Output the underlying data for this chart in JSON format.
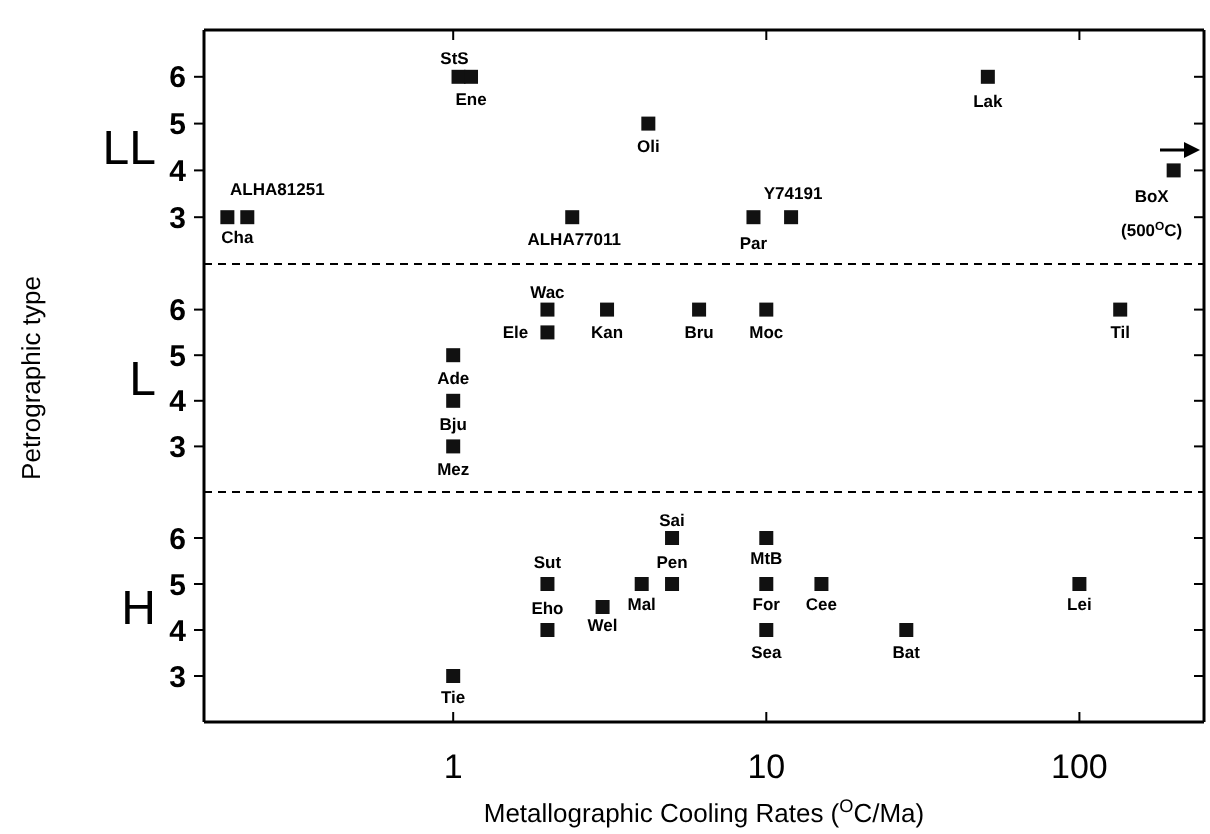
{
  "chart_data": [
    {
      "type": "scatter",
      "title": "LL",
      "log": "x",
      "xlim": [
        0.16,
        250
      ],
      "xticks": [
        1,
        10,
        100
      ],
      "ylim": [
        2,
        7
      ],
      "yticks": [
        3,
        4,
        5,
        6
      ],
      "tick_labels": "y",
      "marker": "square",
      "grid": false,
      "series": [
        {
          "color": "#111111",
          "x": [
            0.19,
            0.22,
            1.04,
            1.14,
            2.4,
            4.2,
            9.1,
            12,
            51,
            200
          ],
          "values": [
            3,
            3,
            6,
            6,
            3,
            5,
            3,
            3,
            6,
            4
          ]
        }
      ],
      "annotations": [
        {
          "text": "ALHA81251",
          "x": 0.19,
          "y": 3
        },
        {
          "text": "Cha",
          "x": 0.22,
          "y": 3
        },
        {
          "text": "StS",
          "x": 1.04,
          "y": 6
        },
        {
          "text": "Ene",
          "x": 1.14,
          "y": 6
        },
        {
          "text": "ALHA77011",
          "x": 2.4,
          "y": 3
        },
        {
          "text": "Oli",
          "x": 4.2,
          "y": 5
        },
        {
          "text": "Par",
          "x": 9.1,
          "y": 3
        },
        {
          "text": "Y74191",
          "x": 12,
          "y": 3
        },
        {
          "text": "Lak",
          "x": 51,
          "y": 6
        },
        {
          "text": "BoX (500$^{O}$C)",
          "x": 200,
          "y": 4
        }
      ]
    },
    {
      "type": "scatter",
      "title": "L",
      "ylabel": "Petrographic type",
      "log": "x",
      "xlim": [
        0.16,
        250
      ],
      "xticks": [
        1,
        10,
        100
      ],
      "ylim": [
        2,
        7
      ],
      "yticks": [
        3,
        4,
        5,
        6
      ],
      "tick_labels": "y",
      "marker": "square",
      "grid": false,
      "series": [
        {
          "color": "#111111",
          "x": [
            1,
            1,
            1,
            2,
            2,
            3.1,
            6.1,
            10,
            135
          ],
          "values": [
            5,
            4,
            3,
            6,
            5.5,
            6,
            6,
            6,
            6
          ]
        }
      ],
      "annotations": [
        {
          "text": "Ade",
          "x": 1,
          "y": 5
        },
        {
          "text": "Bju",
          "x": 1,
          "y": 4
        },
        {
          "text": "Mez",
          "x": 1,
          "y": 3
        },
        {
          "text": "Wac",
          "x": 2,
          "y": 6
        },
        {
          "text": "Ele",
          "x": 2,
          "y": 5.5
        },
        {
          "text": "Kan",
          "x": 3.1,
          "y": 6
        },
        {
          "text": "Bru",
          "x": 6.1,
          "y": 6
        },
        {
          "text": "Moc",
          "x": 10,
          "y": 6
        },
        {
          "text": "Til",
          "x": 135,
          "y": 6
        }
      ]
    },
    {
      "type": "scatter",
      "title": "H",
      "xlabel": "Metallographic Cooling Rates ($^{O}$C/Ma)",
      "log": "x",
      "xlim": [
        0.16,
        250
      ],
      "xticks": [
        1,
        10,
        100
      ],
      "ylim": [
        2,
        7
      ],
      "yticks": [
        3,
        4,
        5,
        6
      ],
      "marker": "square",
      "grid": false,
      "series": [
        {
          "color": "#111111",
          "x": [
            1,
            2,
            2,
            3,
            4,
            5,
            5,
            10,
            10,
            10,
            15,
            28,
            100
          ],
          "values": [
            3,
            5,
            4,
            4.5,
            5,
            6,
            5,
            6,
            5,
            4,
            5,
            4,
            5
          ]
        }
      ],
      "annotations": [
        {
          "text": "Tie",
          "x": 1,
          "y": 3
        },
        {
          "text": "Sut",
          "x": 2,
          "y": 5
        },
        {
          "text": "Eho",
          "x": 2,
          "y": 4
        },
        {
          "text": "Wel",
          "x": 3,
          "y": 4.5
        },
        {
          "text": "Mal",
          "x": 4,
          "y": 5
        },
        {
          "text": "Sai",
          "x": 5,
          "y": 6
        },
        {
          "text": "Pen",
          "x": 5,
          "y": 5
        },
        {
          "text": "MtB",
          "x": 10,
          "y": 6
        },
        {
          "text": "For",
          "x": 10,
          "y": 5
        },
        {
          "text": "Sea",
          "x": 10,
          "y": 4
        },
        {
          "text": "Cee",
          "x": 15,
          "y": 5
        },
        {
          "text": "Bat",
          "x": 28,
          "y": 4
        },
        {
          "text": "Lei",
          "x": 100,
          "y": 5
        }
      ]
    }
  ]
}
